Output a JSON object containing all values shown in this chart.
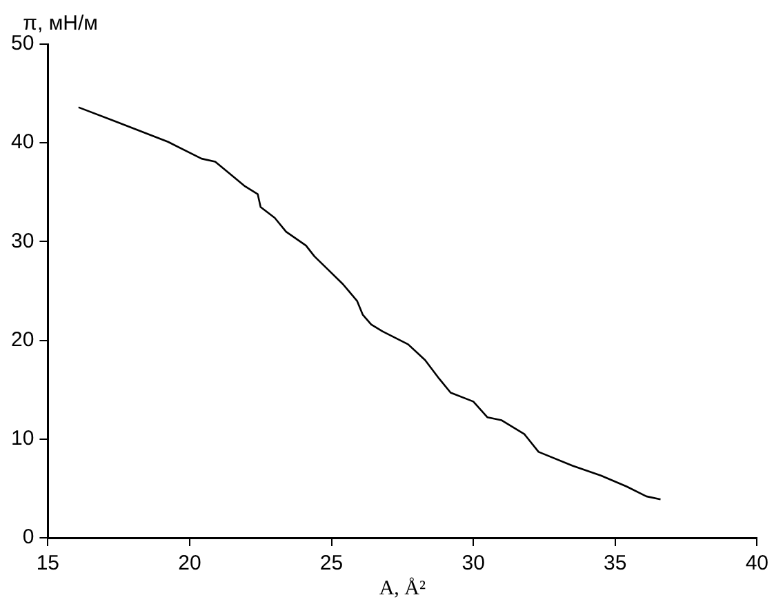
{
  "chart_data": {
    "type": "line",
    "xlabel": "A, Å²",
    "ylabel": "π, мН/м",
    "x": [
      16.08,
      17.36,
      19.24,
      20.42,
      20.9,
      21.95,
      22.4,
      22.5,
      23.0,
      23.4,
      24.1,
      24.4,
      24.9,
      25.4,
      25.9,
      26.1,
      26.4,
      26.8,
      27.7,
      28.3,
      28.8,
      29.2,
      30.0,
      30.5,
      31.0,
      31.8,
      32.3,
      33.5,
      34.5,
      35.4,
      36.1,
      36.6
    ],
    "series": [
      {
        "color": "#000000",
        "values": [
          43.6,
          42.2,
          40.1,
          38.4,
          38.1,
          35.6,
          34.8,
          33.5,
          32.4,
          31.0,
          29.6,
          28.5,
          27.1,
          25.7,
          24.0,
          22.6,
          21.6,
          20.9,
          19.6,
          18.0,
          16.1,
          14.7,
          13.8,
          12.2,
          11.9,
          10.5,
          8.7,
          7.3,
          6.3,
          5.2,
          4.2,
          3.9
        ]
      }
    ],
    "xlim": [
      15,
      40
    ],
    "xticks": [
      15,
      20,
      25,
      30,
      35,
      40
    ],
    "ylim": [
      0,
      50
    ],
    "yticks": [
      0,
      10,
      20,
      30,
      40,
      50
    ],
    "grid": false,
    "legend": false,
    "marker": "none",
    "line_style": "solid"
  }
}
